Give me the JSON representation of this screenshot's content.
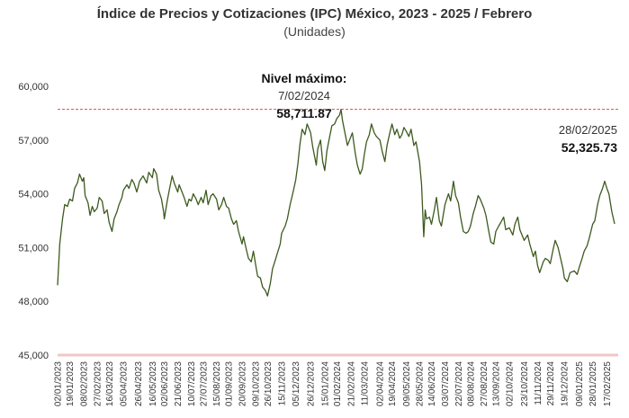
{
  "chart_data": {
    "type": "line",
    "title": "Índice de Precios y Cotizaciones (IPC) México, 2023 - 2025 / Febrero",
    "subtitle": "(Unidades)",
    "xlabel": "",
    "ylabel": "",
    "ylim": [
      45000,
      60000
    ],
    "yticks": [
      "45,000",
      "48,000",
      "51,000",
      "54,000",
      "57,000",
      "60,000"
    ],
    "ytick_values": [
      45000,
      48000,
      51000,
      54000,
      57000,
      60000
    ],
    "grid": false,
    "xticks": [
      "02/01/2023",
      "19/01/2023",
      "08/02/2023",
      "27/02/2023",
      "16/03/2023",
      "05/04/2023",
      "26/04/2023",
      "16/05/2023",
      "02/06/2023",
      "21/06/2023",
      "10/07/2023",
      "27/07/2023",
      "15/08/2023",
      "01/09/2023",
      "20/09/2023",
      "09/10/2023",
      "26/10/2023",
      "15/11/2023",
      "05/12/2023",
      "26/12/2023",
      "15/01/2024",
      "01/02/2024",
      "21/02/2024",
      "11/03/2024",
      "02/04/2024",
      "19/04/2024",
      "09/05/2024",
      "28/05/2024",
      "14/06/2024",
      "03/07/2024",
      "22/07/2024",
      "08/08/2024",
      "27/08/2024",
      "13/09/2024",
      "02/10/2024",
      "23/10/2024",
      "11/11/2024",
      "29/11/2024",
      "19/12/2024",
      "09/01/2025",
      "28/01/2025",
      "17/02/2025"
    ],
    "series": [
      {
        "name": "",
        "color": "#3d5a1e",
        "points": [
          [
            "2023-01-02",
            48900
          ],
          [
            "2023-01-05",
            51200
          ],
          [
            "2023-01-09",
            52600
          ],
          [
            "2023-01-12",
            53400
          ],
          [
            "2023-01-16",
            53300
          ],
          [
            "2023-01-19",
            53700
          ],
          [
            "2023-01-23",
            53600
          ],
          [
            "2023-01-26",
            54300
          ],
          [
            "2023-01-30",
            54600
          ],
          [
            "2023-02-02",
            55100
          ],
          [
            "2023-02-06",
            54700
          ],
          [
            "2023-02-08",
            54900
          ],
          [
            "2023-02-10",
            53900
          ],
          [
            "2023-02-14",
            53500
          ],
          [
            "2023-02-17",
            52800
          ],
          [
            "2023-02-20",
            53300
          ],
          [
            "2023-02-23",
            53000
          ],
          [
            "2023-02-27",
            53200
          ],
          [
            "2023-03-02",
            53800
          ],
          [
            "2023-03-06",
            53600
          ],
          [
            "2023-03-09",
            52900
          ],
          [
            "2023-03-13",
            53100
          ],
          [
            "2023-03-16",
            52400
          ],
          [
            "2023-03-20",
            51900
          ],
          [
            "2023-03-23",
            52600
          ],
          [
            "2023-03-27",
            53000
          ],
          [
            "2023-03-30",
            53400
          ],
          [
            "2023-04-03",
            53800
          ],
          [
            "2023-04-05",
            54200
          ],
          [
            "2023-04-10",
            54500
          ],
          [
            "2023-04-13",
            54300
          ],
          [
            "2023-04-17",
            54800
          ],
          [
            "2023-04-20",
            54600
          ],
          [
            "2023-04-24",
            54100
          ],
          [
            "2023-04-26",
            54400
          ],
          [
            "2023-04-28",
            54700
          ],
          [
            "2023-05-03",
            55000
          ],
          [
            "2023-05-08",
            54600
          ],
          [
            "2023-05-11",
            55200
          ],
          [
            "2023-05-16",
            54900
          ],
          [
            "2023-05-18",
            55400
          ],
          [
            "2023-05-22",
            55100
          ],
          [
            "2023-05-25",
            54200
          ],
          [
            "2023-05-29",
            53700
          ],
          [
            "2023-06-01",
            53000
          ],
          [
            "2023-06-02",
            52600
          ],
          [
            "2023-06-06",
            53600
          ],
          [
            "2023-06-09",
            54200
          ],
          [
            "2023-06-13",
            55000
          ],
          [
            "2023-06-16",
            54600
          ],
          [
            "2023-06-21",
            54100
          ],
          [
            "2023-06-23",
            54500
          ],
          [
            "2023-06-27",
            54100
          ],
          [
            "2023-06-30",
            53800
          ],
          [
            "2023-07-04",
            53300
          ],
          [
            "2023-07-07",
            53700
          ],
          [
            "2023-07-10",
            53600
          ],
          [
            "2023-07-13",
            54000
          ],
          [
            "2023-07-17",
            53700
          ],
          [
            "2023-07-20",
            53400
          ],
          [
            "2023-07-24",
            53800
          ],
          [
            "2023-07-27",
            53500
          ],
          [
            "2023-07-31",
            54200
          ],
          [
            "2023-08-03",
            53400
          ],
          [
            "2023-08-07",
            53900
          ],
          [
            "2023-08-10",
            54000
          ],
          [
            "2023-08-15",
            53700
          ],
          [
            "2023-08-18",
            53100
          ],
          [
            "2023-08-22",
            53400
          ],
          [
            "2023-08-25",
            53800
          ],
          [
            "2023-08-29",
            53300
          ],
          [
            "2023-09-01",
            53200
          ],
          [
            "2023-09-05",
            52600
          ],
          [
            "2023-09-08",
            52300
          ],
          [
            "2023-09-12",
            52500
          ],
          [
            "2023-09-15",
            51900
          ],
          [
            "2023-09-20",
            51200
          ],
          [
            "2023-09-22",
            51600
          ],
          [
            "2023-09-26",
            50900
          ],
          [
            "2023-09-29",
            50400
          ],
          [
            "2023-10-03",
            50200
          ],
          [
            "2023-10-06",
            50800
          ],
          [
            "2023-10-09",
            50100
          ],
          [
            "2023-10-12",
            49400
          ],
          [
            "2023-10-16",
            49300
          ],
          [
            "2023-10-19",
            48800
          ],
          [
            "2023-10-23",
            48600
          ],
          [
            "2023-10-26",
            48300
          ],
          [
            "2023-10-30",
            49000
          ],
          [
            "2023-11-02",
            49800
          ],
          [
            "2023-11-06",
            50300
          ],
          [
            "2023-11-09",
            50700
          ],
          [
            "2023-11-13",
            51200
          ],
          [
            "2023-11-15",
            51800
          ],
          [
            "2023-11-20",
            52200
          ],
          [
            "2023-11-23",
            52600
          ],
          [
            "2023-11-27",
            53400
          ],
          [
            "2023-11-30",
            53900
          ],
          [
            "2023-12-04",
            54600
          ],
          [
            "2023-12-05",
            54800
          ],
          [
            "2023-12-08",
            55700
          ],
          [
            "2023-12-11",
            56800
          ],
          [
            "2023-12-14",
            57600
          ],
          [
            "2023-12-18",
            57300
          ],
          [
            "2023-12-21",
            57900
          ],
          [
            "2023-12-26",
            57400
          ],
          [
            "2023-12-29",
            56600
          ],
          [
            "2024-01-03",
            55600
          ],
          [
            "2024-01-05",
            56500
          ],
          [
            "2024-01-09",
            57000
          ],
          [
            "2024-01-12",
            55800
          ],
          [
            "2024-01-15",
            55300
          ],
          [
            "2024-01-18",
            56400
          ],
          [
            "2024-01-22",
            57200
          ],
          [
            "2024-01-25",
            57800
          ],
          [
            "2024-01-29",
            57900
          ],
          [
            "2024-02-01",
            58200
          ],
          [
            "2024-02-05",
            58400
          ],
          [
            "2024-02-07",
            58711.87
          ],
          [
            "2024-02-09",
            58100
          ],
          [
            "2024-02-13",
            57300
          ],
          [
            "2024-02-16",
            56700
          ],
          [
            "2024-02-21",
            57200
          ],
          [
            "2024-02-23",
            57400
          ],
          [
            "2024-02-27",
            56300
          ],
          [
            "2024-03-01",
            55600
          ],
          [
            "2024-03-05",
            55100
          ],
          [
            "2024-03-08",
            55400
          ],
          [
            "2024-03-11",
            56200
          ],
          [
            "2024-03-14",
            56900
          ],
          [
            "2024-03-18",
            57300
          ],
          [
            "2024-03-21",
            57900
          ],
          [
            "2024-03-25",
            57400
          ],
          [
            "2024-03-28",
            57200
          ],
          [
            "2024-04-02",
            57000
          ],
          [
            "2024-04-05",
            56400
          ],
          [
            "2024-04-09",
            55800
          ],
          [
            "2024-04-12",
            56700
          ],
          [
            "2024-04-16",
            57400
          ],
          [
            "2024-04-19",
            57900
          ],
          [
            "2024-04-23",
            57300
          ],
          [
            "2024-04-26",
            57600
          ],
          [
            "2024-04-30",
            57100
          ],
          [
            "2024-05-03",
            57300
          ],
          [
            "2024-05-06",
            57700
          ],
          [
            "2024-05-09",
            57500
          ],
          [
            "2024-05-13",
            57200
          ],
          [
            "2024-05-16",
            57600
          ],
          [
            "2024-05-20",
            56700
          ],
          [
            "2024-05-23",
            56900
          ],
          [
            "2024-05-28",
            55800
          ],
          [
            "2024-05-31",
            54500
          ],
          [
            "2024-06-03",
            51600
          ],
          [
            "2024-06-05",
            53100
          ],
          [
            "2024-06-07",
            52600
          ],
          [
            "2024-06-11",
            52700
          ],
          [
            "2024-06-14",
            52300
          ],
          [
            "2024-06-18",
            53100
          ],
          [
            "2024-06-21",
            53800
          ],
          [
            "2024-06-25",
            52500
          ],
          [
            "2024-06-28",
            52200
          ],
          [
            "2024-07-03",
            53400
          ],
          [
            "2024-07-08",
            54000
          ],
          [
            "2024-07-11",
            53600
          ],
          [
            "2024-07-15",
            54700
          ],
          [
            "2024-07-18",
            53900
          ],
          [
            "2024-07-22",
            53500
          ],
          [
            "2024-07-25",
            52700
          ],
          [
            "2024-07-29",
            51900
          ],
          [
            "2024-08-02",
            51800
          ],
          [
            "2024-08-05",
            51900
          ],
          [
            "2024-08-08",
            52200
          ],
          [
            "2024-08-12",
            52900
          ],
          [
            "2024-08-15",
            53300
          ],
          [
            "2024-08-19",
            53900
          ],
          [
            "2024-08-22",
            53700
          ],
          [
            "2024-08-27",
            53200
          ],
          [
            "2024-08-30",
            52800
          ],
          [
            "2024-09-03",
            51900
          ],
          [
            "2024-09-06",
            51300
          ],
          [
            "2024-09-10",
            51200
          ],
          [
            "2024-09-13",
            51900
          ],
          [
            "2024-09-17",
            52200
          ],
          [
            "2024-09-20",
            52400
          ],
          [
            "2024-09-24",
            52700
          ],
          [
            "2024-09-27",
            52000
          ],
          [
            "2024-10-02",
            52100
          ],
          [
            "2024-10-07",
            51700
          ],
          [
            "2024-10-10",
            52300
          ],
          [
            "2024-10-14",
            52700
          ],
          [
            "2024-10-17",
            52000
          ],
          [
            "2024-10-23",
            51400
          ],
          [
            "2024-10-28",
            51700
          ],
          [
            "2024-10-31",
            51200
          ],
          [
            "2024-11-05",
            50500
          ],
          [
            "2024-11-08",
            50800
          ],
          [
            "2024-11-11",
            50000
          ],
          [
            "2024-11-14",
            49600
          ],
          [
            "2024-11-19",
            50200
          ],
          [
            "2024-11-22",
            50400
          ],
          [
            "2024-11-26",
            50300
          ],
          [
            "2024-11-29",
            50100
          ],
          [
            "2024-12-03",
            50900
          ],
          [
            "2024-12-06",
            51400
          ],
          [
            "2024-12-10",
            51000
          ],
          [
            "2024-12-13",
            50500
          ],
          [
            "2024-12-17",
            49800
          ],
          [
            "2024-12-19",
            49300
          ],
          [
            "2024-12-23",
            49100
          ],
          [
            "2024-12-27",
            49600
          ],
          [
            "2025-01-02",
            49700
          ],
          [
            "2025-01-06",
            49500
          ],
          [
            "2025-01-09",
            49900
          ],
          [
            "2025-01-13",
            50400
          ],
          [
            "2025-01-16",
            50800
          ],
          [
            "2025-01-20",
            51100
          ],
          [
            "2025-01-23",
            51500
          ],
          [
            "2025-01-28",
            52300
          ],
          [
            "2025-01-31",
            52500
          ],
          [
            "2025-02-04",
            53400
          ],
          [
            "2025-02-07",
            53900
          ],
          [
            "2025-02-11",
            54300
          ],
          [
            "2025-02-14",
            54700
          ],
          [
            "2025-02-17",
            54300
          ],
          [
            "2025-02-20",
            54000
          ],
          [
            "2025-02-24",
            53000
          ],
          [
            "2025-02-28",
            52325.73
          ]
        ]
      }
    ],
    "reference_lines": [
      {
        "value": 58711.87,
        "style": "dashed",
        "color": "#e04a4a"
      },
      {
        "value": 45000,
        "style": "solid",
        "color": "#f2c6c6"
      }
    ],
    "annotations": {
      "max": {
        "label": "Nivel máximo:",
        "date": "7/02/2024",
        "value": "58,711.87"
      },
      "last": {
        "date": "28/02/2025",
        "value": "52,325.73"
      }
    }
  }
}
